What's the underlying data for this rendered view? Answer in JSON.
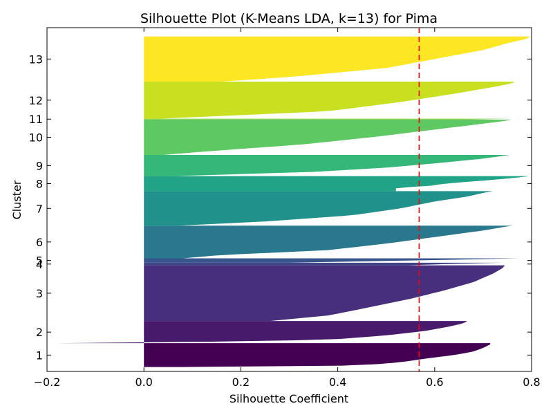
{
  "chart_data": {
    "type": "silhouette",
    "title": "Silhouette Plot (K-Means LDA, k=13) for Pima",
    "xlabel": "Silhouette Coefficient",
    "ylabel": "Cluster",
    "xlim": [
      -0.2,
      0.8
    ],
    "xticks": [
      "−0.2",
      "0.0",
      "0.2",
      "0.4",
      "0.6",
      "0.8"
    ],
    "xtick_values": [
      -0.2,
      0.0,
      0.2,
      0.4,
      0.6,
      0.8
    ],
    "ylim": [
      0,
      778
    ],
    "average_silhouette": 0.568,
    "average_line_color": "#ff0000",
    "grid": false,
    "legend": "none",
    "clusters": [
      {
        "label": "1",
        "y_start": 10,
        "y_end": 64,
        "color": "#440154",
        "profile": [
          [
            0,
            0.08
          ],
          [
            0.03,
            0.37
          ],
          [
            0.1,
            0.47
          ],
          [
            0.2,
            0.53
          ],
          [
            0.35,
            0.58
          ],
          [
            0.5,
            0.64
          ],
          [
            0.65,
            0.68
          ],
          [
            0.8,
            0.7
          ],
          [
            0.95,
            0.715
          ],
          [
            1,
            0.715
          ]
        ]
      },
      {
        "label": "2",
        "y_start": 64,
        "y_end": 114,
        "color": "#481a6c",
        "profile": [
          [
            0,
            -0.18
          ],
          [
            0.03,
            -0.18
          ],
          [
            0.06,
            0.12
          ],
          [
            0.15,
            0.38
          ],
          [
            0.35,
            0.5
          ],
          [
            0.55,
            0.58
          ],
          [
            0.75,
            0.63
          ],
          [
            0.9,
            0.66
          ],
          [
            1,
            0.667
          ]
        ]
      },
      {
        "label": "3",
        "y_start": 114,
        "y_end": 240,
        "color": "#472f7d",
        "profile": [
          [
            0,
            0.26
          ],
          [
            0.1,
            0.38
          ],
          [
            0.22,
            0.45
          ],
          [
            0.4,
            0.55
          ],
          [
            0.55,
            0.62
          ],
          [
            0.7,
            0.68
          ],
          [
            0.85,
            0.72
          ],
          [
            0.95,
            0.74
          ],
          [
            1,
            0.745
          ]
        ]
      },
      {
        "label": "4",
        "y_start": 240,
        "y_end": 246,
        "color": "#414487",
        "profile": [
          [
            0,
            0.54
          ],
          [
            0.4,
            0.6
          ],
          [
            0.8,
            0.7
          ],
          [
            1,
            0.74
          ]
        ]
      },
      {
        "label": "5",
        "y_start": 246,
        "y_end": 256,
        "color": "#39568c",
        "profile": [
          [
            0,
            0.3
          ],
          [
            0.5,
            0.54
          ],
          [
            0.8,
            0.7
          ],
          [
            1,
            0.775
          ]
        ]
      },
      {
        "label": "6",
        "y_start": 256,
        "y_end": 330,
        "color": "#2a788e",
        "profile": [
          [
            0,
            0.08
          ],
          [
            0.1,
            0.16
          ],
          [
            0.25,
            0.38
          ],
          [
            0.45,
            0.5
          ],
          [
            0.65,
            0.6
          ],
          [
            0.85,
            0.7
          ],
          [
            0.95,
            0.74
          ],
          [
            1,
            0.76
          ]
        ]
      },
      {
        "label": "7",
        "y_start": 330,
        "y_end": 408,
        "color": "#21918c",
        "profile": [
          [
            0,
            0.07
          ],
          [
            0.12,
            0.25
          ],
          [
            0.3,
            0.43
          ],
          [
            0.5,
            0.53
          ],
          [
            0.7,
            0.6
          ],
          [
            0.85,
            0.67
          ],
          [
            0.95,
            0.7
          ],
          [
            1,
            0.72
          ]
        ]
      },
      {
        "label": "8",
        "y_start": 408,
        "y_end": 442,
        "color": "#20a386",
        "profile": [
          [
            0,
            0.52
          ],
          [
            0.25,
            0.52
          ],
          [
            0.3,
            0.58
          ],
          [
            0.5,
            0.62
          ],
          [
            0.7,
            0.7
          ],
          [
            0.9,
            0.77
          ],
          [
            1,
            0.795
          ]
        ]
      },
      {
        "label": "9",
        "y_start": 442,
        "y_end": 490,
        "color": "#35b779",
        "profile": [
          [
            0,
            0.06
          ],
          [
            0.2,
            0.35
          ],
          [
            0.4,
            0.5
          ],
          [
            0.6,
            0.6
          ],
          [
            0.8,
            0.69
          ],
          [
            0.95,
            0.74
          ],
          [
            1,
            0.755
          ]
        ]
      },
      {
        "label": "10",
        "y_start": 490,
        "y_end": 570,
        "color": "#5ec962",
        "profile": [
          [
            0,
            0.04
          ],
          [
            0.1,
            0.13
          ],
          [
            0.3,
            0.33
          ],
          [
            0.5,
            0.47
          ],
          [
            0.7,
            0.59
          ],
          [
            0.85,
            0.68
          ],
          [
            0.95,
            0.74
          ],
          [
            1,
            0.758
          ]
        ]
      },
      {
        "label": "11",
        "y_start": 570,
        "y_end": 572,
        "color": "#84d44b",
        "profile": [
          [
            0,
            0.67
          ],
          [
            1,
            0.75
          ]
        ]
      },
      {
        "label": "12",
        "y_start": 572,
        "y_end": 656,
        "color": "#c8e020",
        "profile": [
          [
            0,
            0.03
          ],
          [
            0.05,
            0.12
          ],
          [
            0.2,
            0.38
          ],
          [
            0.45,
            0.53
          ],
          [
            0.65,
            0.63
          ],
          [
            0.85,
            0.72
          ],
          [
            0.95,
            0.76
          ],
          [
            1,
            0.765
          ]
        ]
      },
      {
        "label": "13",
        "y_start": 656,
        "y_end": 758,
        "color": "#fde725",
        "profile": [
          [
            0,
            0.16
          ],
          [
            0.1,
            0.3
          ],
          [
            0.3,
            0.5
          ],
          [
            0.5,
            0.6
          ],
          [
            0.7,
            0.7
          ],
          [
            0.85,
            0.75
          ],
          [
            0.95,
            0.79
          ],
          [
            1,
            0.797
          ]
        ]
      }
    ]
  }
}
